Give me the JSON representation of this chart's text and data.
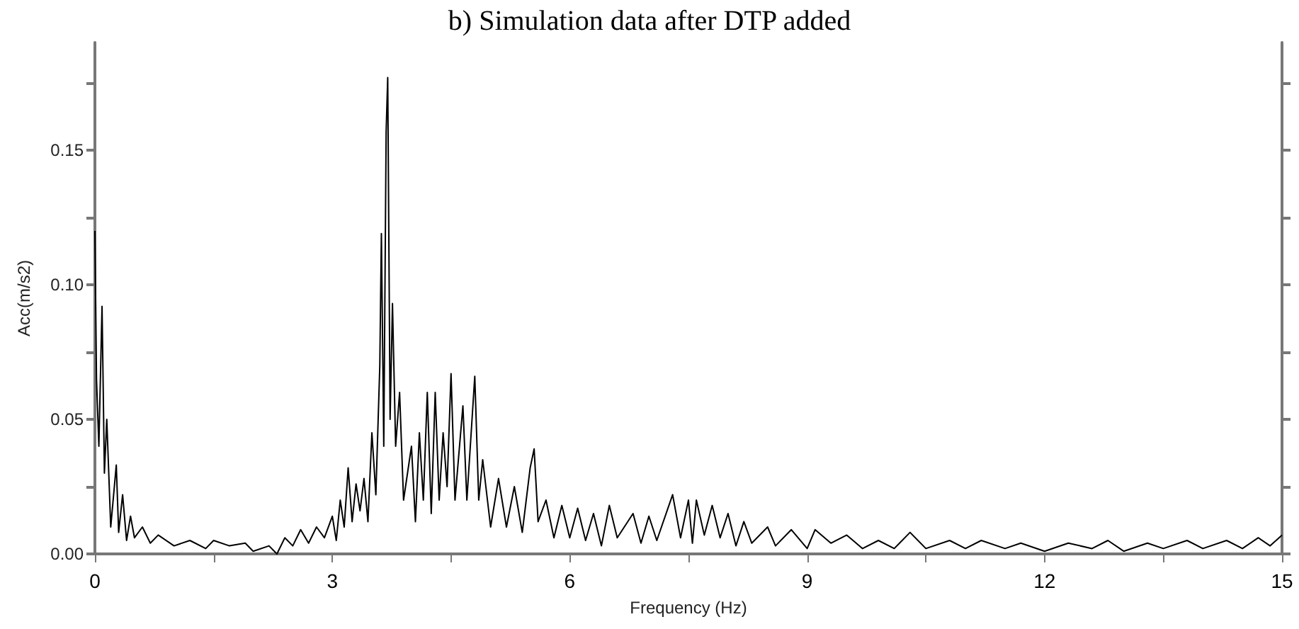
{
  "chart_data": {
    "type": "line",
    "title": "b) Simulation data after DTP added",
    "xlabel": "Frequency (Hz)",
    "ylabel": "Acc(m/s2)",
    "x": [
      0,
      0.02,
      0.05,
      0.09,
      0.12,
      0.15,
      0.2,
      0.27,
      0.3,
      0.35,
      0.4,
      0.45,
      0.5,
      0.6,
      0.7,
      0.8,
      1.0,
      1.2,
      1.4,
      1.5,
      1.7,
      1.9,
      2.0,
      2.2,
      2.3,
      2.4,
      2.5,
      2.6,
      2.7,
      2.8,
      2.9,
      3.0,
      3.05,
      3.1,
      3.15,
      3.2,
      3.25,
      3.3,
      3.35,
      3.4,
      3.45,
      3.5,
      3.55,
      3.6,
      3.62,
      3.65,
      3.68,
      3.7,
      3.73,
      3.76,
      3.8,
      3.85,
      3.9,
      4.0,
      4.05,
      4.1,
      4.15,
      4.2,
      4.25,
      4.3,
      4.35,
      4.4,
      4.45,
      4.5,
      4.55,
      4.65,
      4.7,
      4.8,
      4.85,
      4.9,
      5.0,
      5.1,
      5.2,
      5.3,
      5.4,
      5.5,
      5.55,
      5.6,
      5.7,
      5.8,
      5.9,
      6.0,
      6.1,
      6.2,
      6.3,
      6.4,
      6.5,
      6.6,
      6.8,
      6.9,
      7.0,
      7.1,
      7.3,
      7.4,
      7.5,
      7.55,
      7.6,
      7.7,
      7.8,
      7.9,
      8.0,
      8.1,
      8.2,
      8.3,
      8.5,
      8.6,
      8.8,
      9.0,
      9.1,
      9.3,
      9.5,
      9.7,
      9.9,
      10.1,
      10.3,
      10.5,
      10.8,
      11.0,
      11.2,
      11.5,
      11.7,
      12.0,
      12.3,
      12.6,
      12.8,
      13.0,
      13.3,
      13.5,
      13.8,
      14.0,
      14.3,
      14.5,
      14.7,
      14.85,
      15.0
    ],
    "series": [
      {
        "color": "#000000",
        "values": [
          0.12,
          0.065,
          0.04,
          0.092,
          0.03,
          0.05,
          0.01,
          0.033,
          0.008,
          0.022,
          0.005,
          0.014,
          0.006,
          0.01,
          0.004,
          0.007,
          0.003,
          0.005,
          0.002,
          0.005,
          0.003,
          0.004,
          0.001,
          0.003,
          0.0,
          0.006,
          0.003,
          0.009,
          0.004,
          0.01,
          0.006,
          0.014,
          0.005,
          0.02,
          0.01,
          0.032,
          0.012,
          0.026,
          0.016,
          0.028,
          0.012,
          0.045,
          0.022,
          0.07,
          0.119,
          0.04,
          0.157,
          0.177,
          0.05,
          0.093,
          0.04,
          0.06,
          0.02,
          0.04,
          0.012,
          0.045,
          0.02,
          0.06,
          0.015,
          0.06,
          0.02,
          0.045,
          0.025,
          0.067,
          0.02,
          0.055,
          0.02,
          0.066,
          0.02,
          0.035,
          0.01,
          0.028,
          0.01,
          0.025,
          0.008,
          0.032,
          0.039,
          0.012,
          0.02,
          0.006,
          0.018,
          0.006,
          0.017,
          0.005,
          0.015,
          0.003,
          0.018,
          0.006,
          0.015,
          0.004,
          0.014,
          0.005,
          0.022,
          0.006,
          0.02,
          0.004,
          0.02,
          0.007,
          0.018,
          0.006,
          0.015,
          0.003,
          0.012,
          0.004,
          0.01,
          0.003,
          0.009,
          0.002,
          0.009,
          0.004,
          0.007,
          0.002,
          0.005,
          0.002,
          0.008,
          0.002,
          0.005,
          0.002,
          0.005,
          0.002,
          0.004,
          0.001,
          0.004,
          0.002,
          0.005,
          0.001,
          0.004,
          0.002,
          0.005,
          0.002,
          0.005,
          0.002,
          0.006,
          0.003,
          0.007
        ]
      }
    ],
    "xlim": [
      0,
      15
    ],
    "xticks": [
      0,
      {
        "value": 1.5,
        "label": null
      },
      3,
      {
        "value": 4.5,
        "label": null
      },
      6,
      {
        "value": 7.5,
        "label": null
      },
      9,
      {
        "value": 10.5,
        "label": null
      },
      12,
      {
        "value": 13.5,
        "label": null
      },
      15
    ],
    "ylim": [
      0,
      0.19
    ],
    "yticks": [
      {
        "value": 0,
        "label": "0.00"
      },
      {
        "value": 0.025,
        "label": null
      },
      {
        "value": 0.05,
        "label": "0.05"
      },
      {
        "value": 0.075,
        "label": null
      },
      {
        "value": 0.1,
        "label": "0.10"
      },
      {
        "value": 0.125,
        "label": null
      },
      {
        "value": 0.15,
        "label": "0.15"
      },
      {
        "value": 0.175,
        "label": null
      }
    ]
  }
}
